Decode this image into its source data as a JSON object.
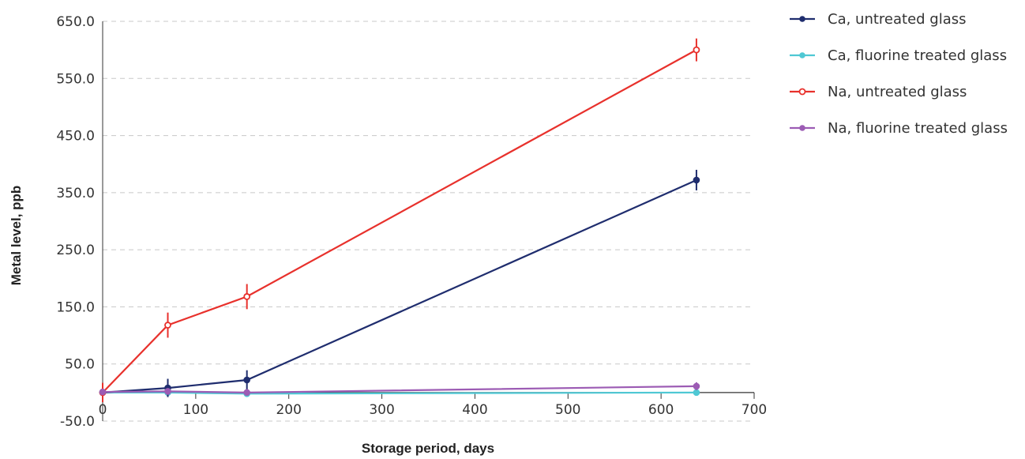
{
  "chart_data": {
    "type": "line",
    "xlabel": "Storage period, days",
    "ylabel": "Metal level, ppb",
    "xlim": [
      0,
      700
    ],
    "ylim": [
      -50,
      650
    ],
    "xticks": [
      "0",
      "100",
      "200",
      "300",
      "400",
      "500",
      "600",
      "700"
    ],
    "yticks": [
      "-50.0",
      "50.0",
      "150.0",
      "250.0",
      "350.0",
      "450.0",
      "550.0",
      "650.0"
    ],
    "grid": "horizontal-dashed",
    "legend_position": "top-right",
    "series": [
      {
        "name": "Ca, untreated glass",
        "color": "#1f2d6e",
        "marker": "filled-circle",
        "x": [
          0,
          70,
          155,
          638
        ],
        "y": [
          0,
          8,
          22,
          372
        ],
        "err": [
          4,
          16,
          17,
          18
        ]
      },
      {
        "name": "Ca, fluorine treated glass",
        "color": "#4fc8d4",
        "marker": "filled-circle",
        "x": [
          0,
          70,
          155,
          638
        ],
        "y": [
          0,
          0,
          -2,
          0
        ],
        "err": [
          1,
          2,
          4,
          3
        ]
      },
      {
        "name": "Na, untreated glass",
        "color": "#e8312c",
        "marker": "open-circle",
        "x": [
          0,
          70,
          155,
          638
        ],
        "y": [
          0,
          118,
          168,
          600
        ],
        "err": [
          17,
          22,
          22,
          20
        ]
      },
      {
        "name": "Na, fluorine treated glass",
        "color": "#9c5cb4",
        "marker": "filled-circle",
        "x": [
          0,
          70,
          155,
          638
        ],
        "y": [
          1,
          2,
          0,
          11
        ],
        "err": [
          4,
          4,
          4,
          7
        ]
      }
    ]
  }
}
